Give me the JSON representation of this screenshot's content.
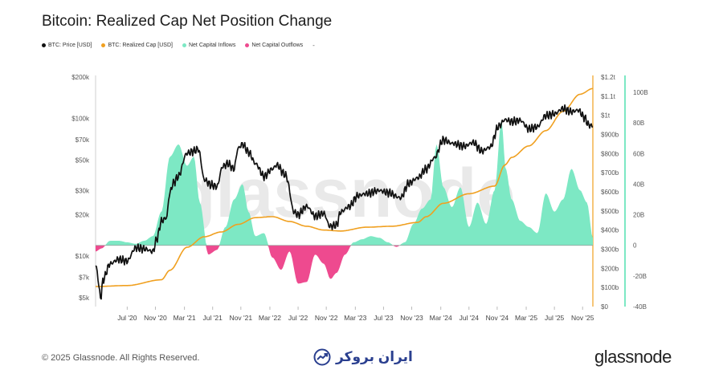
{
  "header": {
    "title": "Bitcoin: Realized Cap Net Position Change"
  },
  "legend": {
    "items": [
      {
        "label": "BTC: Price [USD]",
        "color": "#111111"
      },
      {
        "label": "BTC: Realized Cap [USD]",
        "color": "#f0a020"
      },
      {
        "label": "Net Capital Inflows",
        "color": "#7de8c4"
      },
      {
        "label": "Net Capital Outflows",
        "color": "#ee4a8f"
      }
    ],
    "extra": "-"
  },
  "watermark": "glassnode",
  "footer": {
    "copyright": "© 2025 Glassnode. All Rights Reserved.",
    "brand": "glassnode",
    "partner": "ایران بروکر"
  },
  "chart_data": {
    "type": "line",
    "title": "Bitcoin: Realized Cap Net Position Change",
    "x_ticks": [
      "Jul '20",
      "Nov '20",
      "Mar '21",
      "Jul '21",
      "Nov '21",
      "Mar '22",
      "Jul '22",
      "Nov '22",
      "Mar '23",
      "Jul '23",
      "Nov '23",
      "Mar '24",
      "Jul '24",
      "Nov '24",
      "Mar '25",
      "Jul '25",
      "Nov '25"
    ],
    "y_left_ticks": [
      "$200k",
      "$100k",
      "$70k",
      "$50k",
      "$30k",
      "$20k",
      "$10k",
      "$7k",
      "$5k"
    ],
    "y_mid_ticks": [
      "$1.2t",
      "$1.1t",
      "$1t",
      "$900b",
      "$800b",
      "$700b",
      "$600b",
      "$500b",
      "$400b",
      "$300b",
      "$200b",
      "$100b",
      "$0"
    ],
    "y_right_ticks": [
      "100B",
      "80B",
      "60B",
      "40B",
      "20B",
      "0",
      "-20B",
      "-40B"
    ],
    "ylim_price": [
      4300,
      200000
    ],
    "ylim_realized_cap": [
      0,
      1200
    ],
    "ylim_net_position": [
      -40,
      110
    ],
    "x_range": [
      2020.13,
      2025.95
    ],
    "series": [
      {
        "name": "BTC: Price [USD]",
        "axis": "left-log",
        "x": [
          2020.13,
          2020.19,
          2020.22,
          2020.3,
          2020.4,
          2020.5,
          2020.6,
          2020.7,
          2020.8,
          2020.85,
          2020.9,
          2020.96,
          2021.0,
          2021.04,
          2021.1,
          2021.2,
          2021.28,
          2021.33,
          2021.4,
          2021.48,
          2021.55,
          2021.62,
          2021.68,
          2021.75,
          2021.8,
          2021.85,
          2021.92,
          2022.0,
          2022.1,
          2022.2,
          2022.25,
          2022.35,
          2022.45,
          2022.5,
          2022.6,
          2022.7,
          2022.8,
          2022.87,
          2022.95,
          2023.0,
          2023.1,
          2023.2,
          2023.3,
          2023.45,
          2023.55,
          2023.7,
          2023.8,
          2023.9,
          2024.0,
          2024.1,
          2024.2,
          2024.3,
          2024.45,
          2024.55,
          2024.65,
          2024.75,
          2024.85,
          2024.92,
          2025.0,
          2025.1,
          2025.2,
          2025.3,
          2025.4,
          2025.5,
          2025.6,
          2025.7,
          2025.78,
          2025.85,
          2025.9,
          2025.95
        ],
        "values": [
          8500,
          5000,
          6800,
          8800,
          9500,
          9200,
          11500,
          11300,
          10800,
          13500,
          18000,
          19000,
          29000,
          34000,
          38000,
          56000,
          58000,
          60000,
          36000,
          33000,
          32000,
          45000,
          47000,
          43000,
          61000,
          65000,
          57000,
          47000,
          38000,
          43000,
          46000,
          39000,
          21000,
          20000,
          23000,
          19500,
          20500,
          16500,
          16800,
          21000,
          23000,
          27500,
          28500,
          30000,
          29000,
          26500,
          34000,
          37000,
          43000,
          52000,
          70000,
          66000,
          63000,
          67000,
          58000,
          62000,
          88000,
          98000,
          95000,
          97000,
          84000,
          87000,
          105000,
          108000,
          118000,
          112000,
          115000,
          102000,
          90000,
          88000
        ]
      },
      {
        "name": "BTC: Realized Cap [USD]",
        "axis": "middle-linear",
        "unit": "USD billions",
        "x": [
          2020.13,
          2020.5,
          2020.9,
          2021.0,
          2021.2,
          2021.4,
          2021.6,
          2021.8,
          2022.0,
          2022.2,
          2022.4,
          2022.6,
          2022.8,
          2023.0,
          2023.3,
          2023.6,
          2023.9,
          2024.0,
          2024.2,
          2024.5,
          2024.8,
          2024.92,
          2025.0,
          2025.2,
          2025.4,
          2025.6,
          2025.8,
          2025.95
        ],
        "values": [
          105,
          110,
          140,
          190,
          310,
          365,
          390,
          430,
          465,
          470,
          445,
          420,
          400,
          395,
          415,
          420,
          440,
          470,
          540,
          590,
          630,
          740,
          780,
          840,
          920,
          1020,
          1110,
          1140
        ]
      },
      {
        "name": "Realized Cap Net Position Change",
        "axis": "right-linear",
        "unit": "USD billions (30-day)",
        "x": [
          2020.13,
          2020.2,
          2020.3,
          2020.4,
          2020.5,
          2020.6,
          2020.7,
          2020.8,
          2020.9,
          2021.0,
          2021.1,
          2021.2,
          2021.28,
          2021.35,
          2021.45,
          2021.55,
          2021.65,
          2021.75,
          2021.85,
          2021.92,
          2022.0,
          2022.1,
          2022.2,
          2022.3,
          2022.4,
          2022.5,
          2022.6,
          2022.7,
          2022.8,
          2022.88,
          2022.95,
          2023.05,
          2023.15,
          2023.25,
          2023.35,
          2023.45,
          2023.55,
          2023.65,
          2023.75,
          2023.85,
          2023.95,
          2024.05,
          2024.12,
          2024.2,
          2024.3,
          2024.4,
          2024.5,
          2024.6,
          2024.7,
          2024.8,
          2024.88,
          2024.93,
          2025.0,
          2025.1,
          2025.2,
          2025.3,
          2025.4,
          2025.5,
          2025.6,
          2025.7,
          2025.8,
          2025.88,
          2025.95
        ],
        "values": [
          -4,
          -2,
          3,
          3,
          2,
          1,
          3,
          6,
          22,
          58,
          66,
          52,
          58,
          28,
          -6,
          -3,
          12,
          30,
          40,
          22,
          6,
          8,
          -8,
          -16,
          -4,
          -25,
          -24,
          -6,
          -12,
          -22,
          -18,
          -6,
          2,
          4,
          6,
          5,
          2,
          -1,
          2,
          14,
          24,
          30,
          66,
          38,
          25,
          38,
          12,
          28,
          14,
          36,
          82,
          50,
          30,
          16,
          12,
          8,
          34,
          22,
          30,
          50,
          36,
          28,
          5
        ]
      }
    ]
  }
}
